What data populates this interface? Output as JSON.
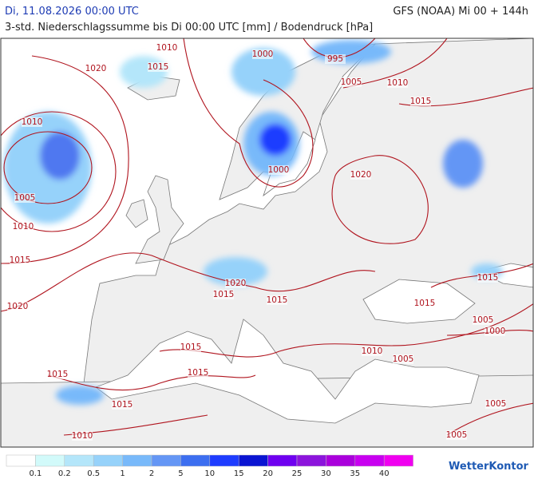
{
  "header": {
    "date": "Di, 11.08.2026 00:00 UTC",
    "model": "GFS (NOAA) Mi 00 + 144h",
    "subtitle": "3-std. Niederschlagssumme bis Di 00:00 UTC [mm] / Bodendruck [hPa]"
  },
  "isobar_labels": [
    1010,
    1015,
    1020,
    1000,
    995,
    1005,
    1010,
    1015,
    1010,
    1005,
    1010,
    1000,
    1020,
    1015,
    1020,
    1015,
    1015,
    1015,
    1015,
    1020,
    1005,
    1000,
    1015,
    1010,
    1005,
    1015,
    1015,
    1015,
    1005,
    1010,
    1005
  ],
  "legend": {
    "colors": [
      "#ffffff",
      "#d2fafa",
      "#b4e6fa",
      "#96d2fa",
      "#78b9fa",
      "#6496f5",
      "#3c6ef0",
      "#1e3cff",
      "#0a14d2",
      "#6e00f0",
      "#8c14dc",
      "#aa00dc",
      "#c800f0",
      "#f000f0",
      "#c81ec8"
    ],
    "labels": [
      0.1,
      0.2,
      0.5,
      1,
      2,
      5,
      10,
      15,
      20,
      25,
      30,
      35,
      40
    ]
  },
  "logo": "WetterKontor"
}
